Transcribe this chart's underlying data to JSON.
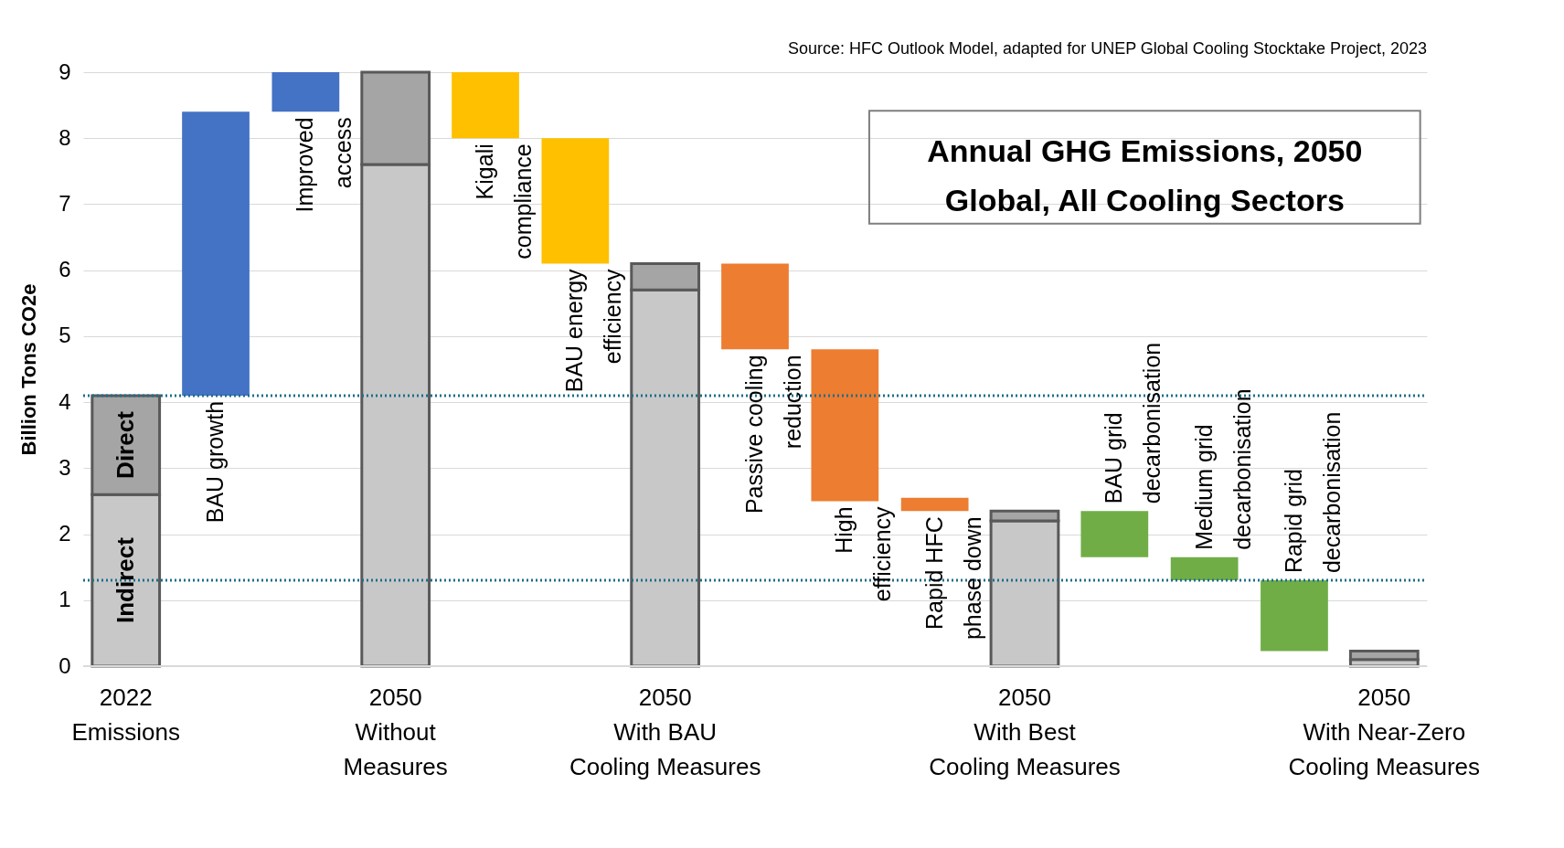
{
  "chart_data": {
    "type": "bar",
    "title": "Annual GHG Emissions, 2050\nGlobal, All Cooling Sectors",
    "ylabel": "Billion Tons CO2e",
    "annotations": [
      "Source: HFC Outlook Model, adapted for UNEP Global Cooling Stocktake Project, 2023"
    ],
    "categories": [
      "2022\nEmissions",
      "BAU growth",
      "Improved\naccess",
      "2050\nWithout\nMeasures",
      "Kigali\ncompliance",
      "BAU energy\nefficiency",
      "2050\nWith BAU\nCooling Measures",
      "Passive cooling\nreduction",
      "High\nefficiency",
      "Rapid HFC\nphase down",
      "2050\nWith Best\nCooling Measures",
      "BAU grid\ndecarbonisation",
      "Medium grid\ndecarbonisation",
      "Rapid grid\ndecarbonisation",
      "2050\nWith Near-Zero\nCooling Measures"
    ],
    "stacked": true,
    "series": [
      {
        "base": [
          null,
          4.1,
          8.4,
          null,
          8.0,
          6.1,
          null,
          4.8,
          2.5,
          2.35,
          null,
          1.65,
          1.3,
          0.23,
          null
        ],
        "colors": [
          null,
          "#4472c4",
          "#4472c4",
          null,
          "#ffc000",
          "#ffc000",
          null,
          "#ed7d31",
          "#ed7d31",
          "#ed7d31",
          null,
          "#70ad47",
          "#70ad47",
          "#70ad47",
          null
        ],
        "values": [
          null,
          4.3,
          0.6,
          null,
          1.0,
          1.9,
          null,
          1.3,
          2.3,
          0.2,
          null,
          0.7,
          0.35,
          1.07,
          null
        ]
      },
      {
        "name": "Indirect",
        "color": "#c8c8c8",
        "values": [
          2.6,
          null,
          null,
          7.6,
          null,
          null,
          5.7,
          null,
          null,
          null,
          2.2,
          null,
          null,
          null,
          0.1
        ]
      },
      {
        "name": "Direct",
        "color": "#a5a5a5",
        "values": [
          1.5,
          null,
          null,
          1.4,
          null,
          null,
          0.4,
          null,
          null,
          null,
          0.15,
          null,
          null,
          null,
          0.13
        ]
      }
    ],
    "ylim": [
      0,
      9
    ],
    "yticks": [
      0,
      1,
      2,
      3,
      4,
      5,
      6,
      7,
      8,
      9
    ],
    "grid": "y",
    "ref_lines": [
      {
        "axis": "y",
        "value": 4.1,
        "color": "#1f6e8c",
        "line_style": "dotted"
      },
      {
        "axis": "y",
        "value": 1.3,
        "color": "#1f6e8c",
        "line_style": "dotted"
      }
    ]
  }
}
